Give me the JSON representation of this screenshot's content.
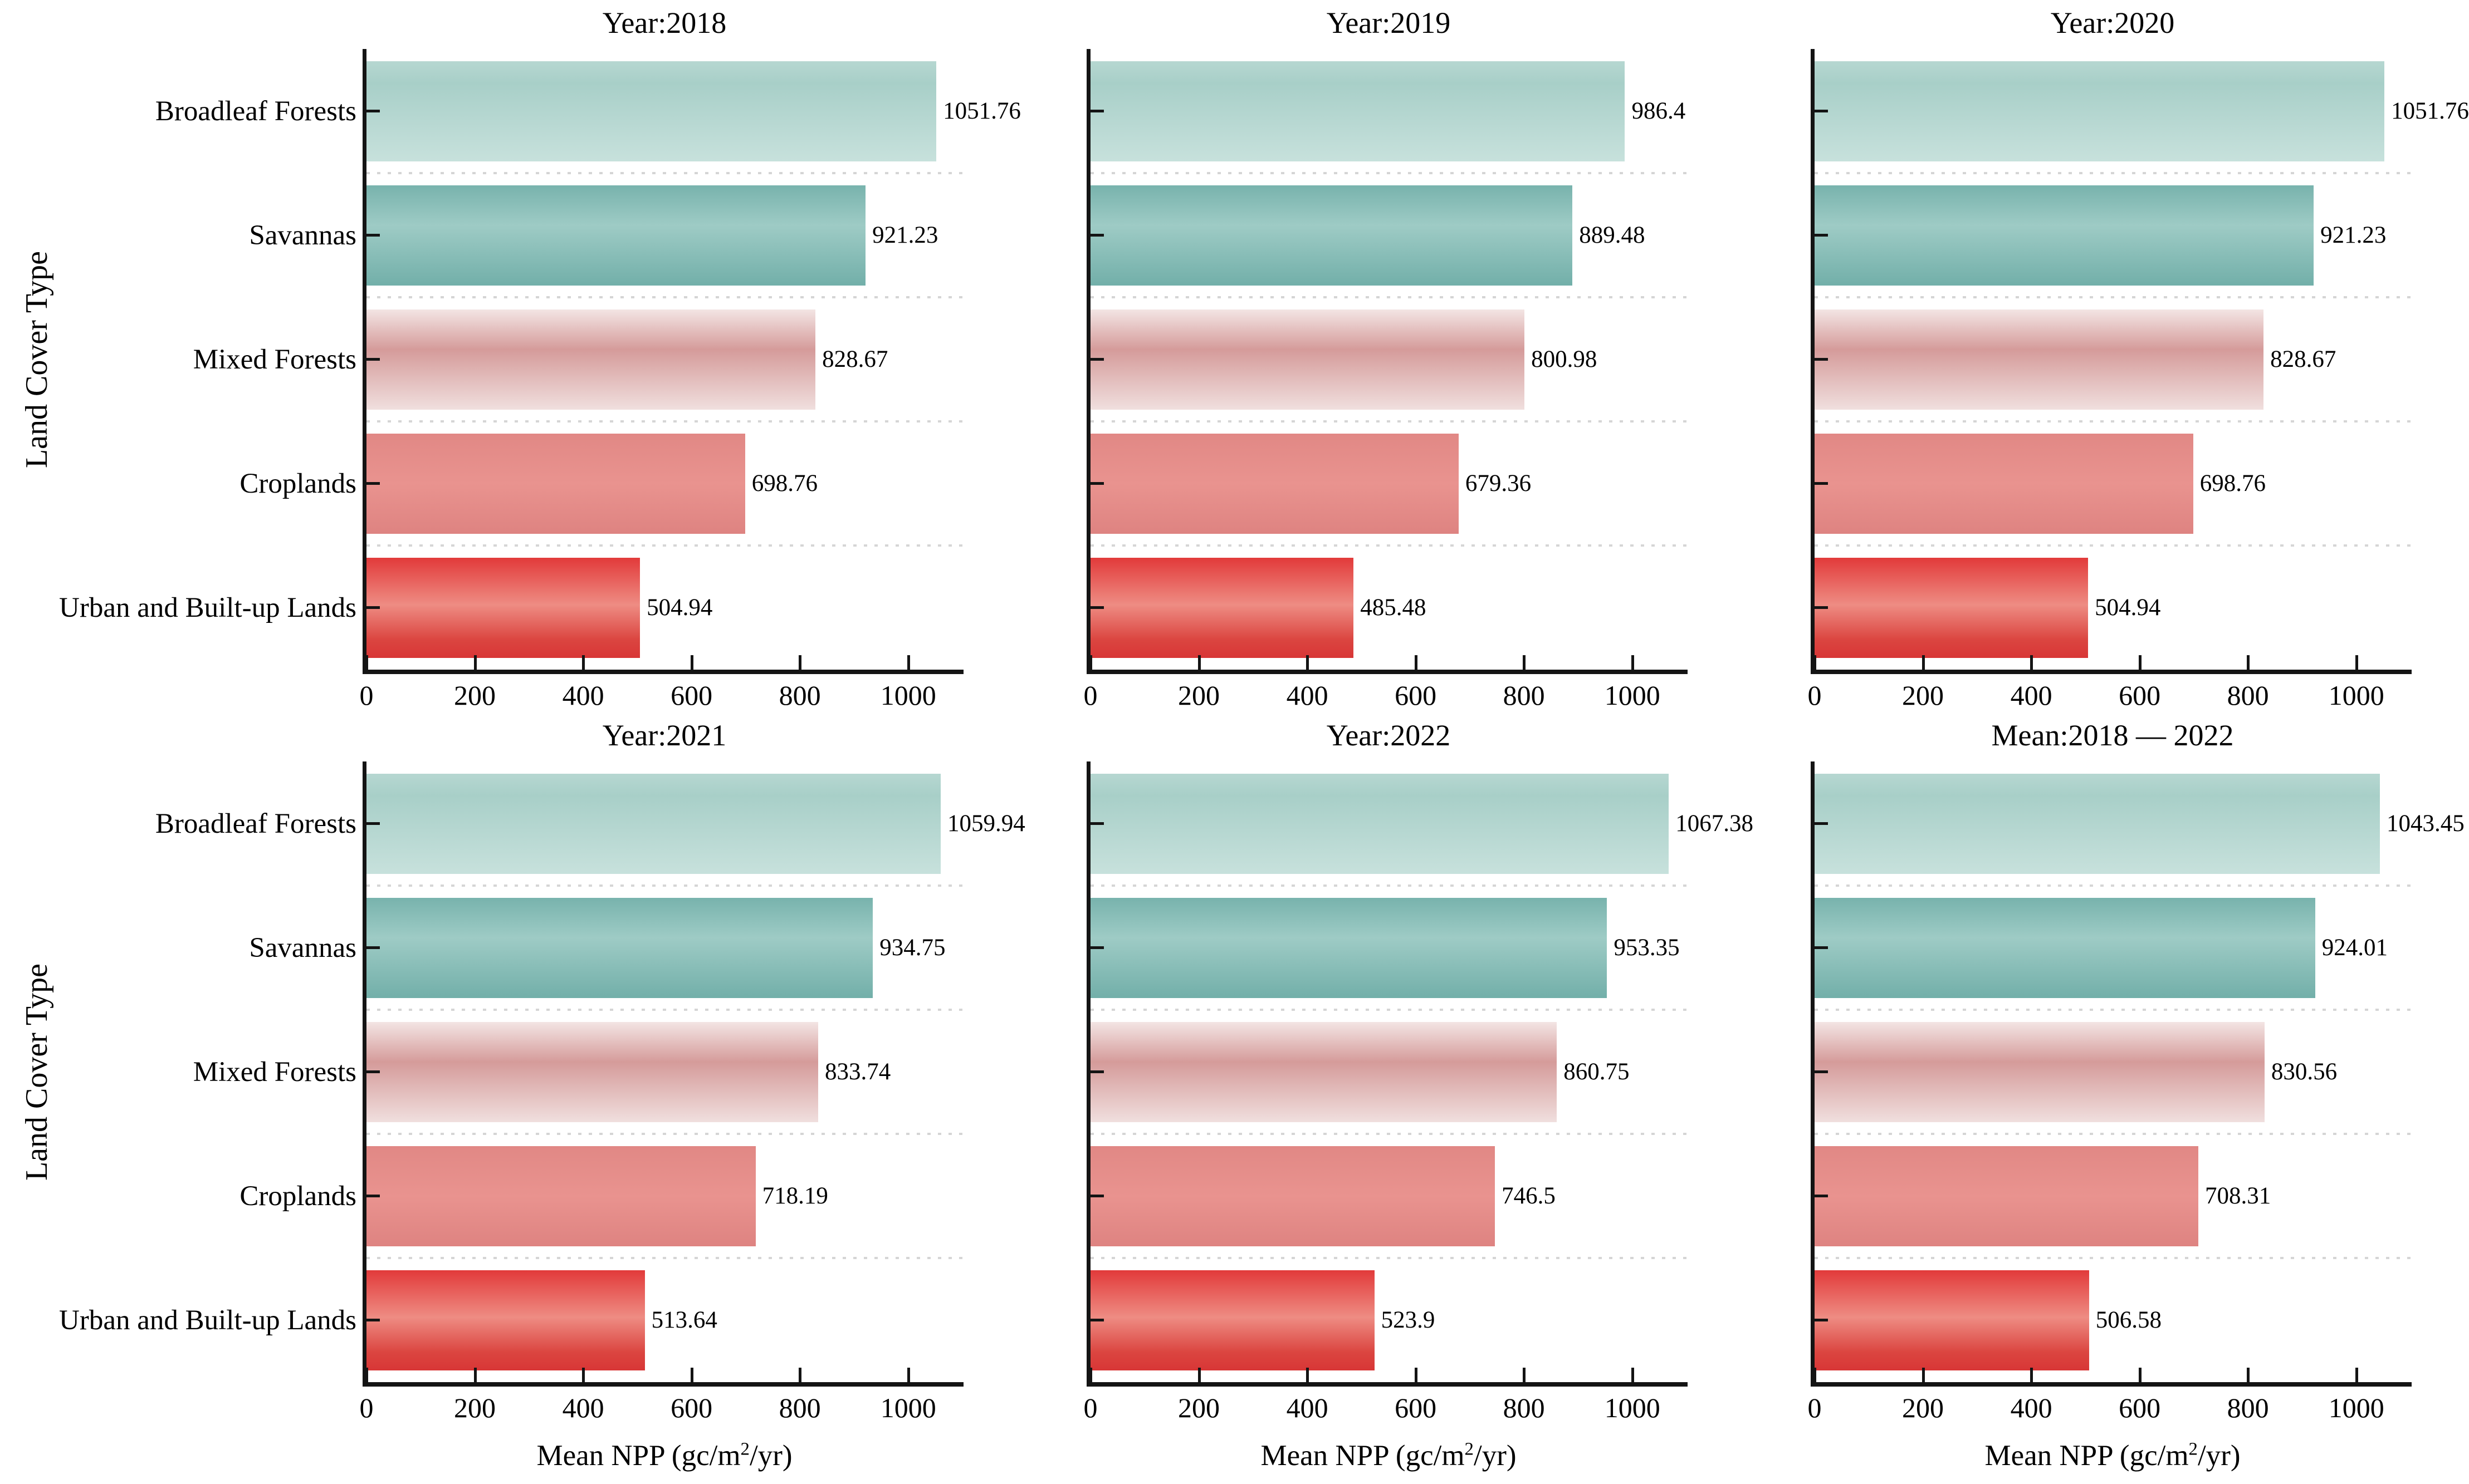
{
  "figure": {
    "ylabel": "Land Cover Type",
    "xlabel": {
      "prefix": "Mean NPP (gc/m",
      "sup": "2",
      "suffix": "/yr)"
    },
    "categories": [
      "Broadleaf Forests",
      "Savannas",
      "Mixed Forests",
      "Croplands",
      "Urban and Built-up Lands"
    ],
    "xticks": [
      0,
      200,
      400,
      600,
      800,
      1000
    ],
    "axis_color": "#141414",
    "gridline_color": "#d5d5d5",
    "bar_gradients": [
      [
        "#b6d7d1 0%",
        "#a8cfc8 22%",
        "#c7e1dc 100%"
      ],
      [
        "#78b3ad 0%",
        "#9ecbc5 40%",
        "#72afa9 100%"
      ],
      [
        "#f3e5e4 0%",
        "#d59b9a 40%",
        "#f0dfde 100%"
      ],
      [
        "#e18885 0%",
        "#e9938f 50%",
        "#de8381 100%"
      ],
      [
        "#e23a3a 0%",
        "#ee8c83 47%",
        "#db4540 82%",
        "#d83636 100%"
      ]
    ]
  },
  "chart_data": [
    {
      "type": "bar",
      "orientation": "horizontal",
      "title": "Year:2018",
      "categories": [
        "Broadleaf Forests",
        "Savannas",
        "Mixed Forests",
        "Croplands",
        "Urban and Built-up Lands"
      ],
      "values": [
        1051.76,
        921.23,
        828.67,
        698.76,
        504.94
      ],
      "xlim": [
        0,
        1100
      ],
      "grid": "dotted-between-bands",
      "legend": "none"
    },
    {
      "type": "bar",
      "orientation": "horizontal",
      "title": "Year:2019",
      "categories": [
        "Broadleaf Forests",
        "Savannas",
        "Mixed Forests",
        "Croplands",
        "Urban and Built-up Lands"
      ],
      "values": [
        986.4,
        889.48,
        800.98,
        679.36,
        485.48
      ],
      "xlim": [
        0,
        1100
      ],
      "grid": "dotted-between-bands",
      "legend": "none"
    },
    {
      "type": "bar",
      "orientation": "horizontal",
      "title": "Year:2020",
      "categories": [
        "Broadleaf Forests",
        "Savannas",
        "Mixed Forests",
        "Croplands",
        "Urban and Built-up Lands"
      ],
      "values": [
        1051.76,
        921.23,
        828.67,
        698.76,
        504.94
      ],
      "xlim": [
        0,
        1100
      ],
      "grid": "dotted-between-bands",
      "legend": "none"
    },
    {
      "type": "bar",
      "orientation": "horizontal",
      "title": "Year:2021",
      "categories": [
        "Broadleaf Forests",
        "Savannas",
        "Mixed Forests",
        "Croplands",
        "Urban and Built-up Lands"
      ],
      "values": [
        1059.94,
        934.75,
        833.74,
        718.19,
        513.64
      ],
      "xlim": [
        0,
        1100
      ],
      "grid": "dotted-between-bands",
      "legend": "none"
    },
    {
      "type": "bar",
      "orientation": "horizontal",
      "title": "Year:2022",
      "categories": [
        "Broadleaf Forests",
        "Savannas",
        "Mixed Forests",
        "Croplands",
        "Urban and Built-up Lands"
      ],
      "values": [
        1067.38,
        953.35,
        860.75,
        746.5,
        523.9
      ],
      "xlim": [
        0,
        1100
      ],
      "grid": "dotted-between-bands",
      "legend": "none"
    },
    {
      "type": "bar",
      "orientation": "horizontal",
      "title": "Mean:2018 — 2022",
      "categories": [
        "Broadleaf Forests",
        "Savannas",
        "Mixed Forests",
        "Croplands",
        "Urban and Built-up Lands"
      ],
      "values": [
        1043.45,
        924.01,
        830.56,
        708.31,
        506.58
      ],
      "xlim": [
        0,
        1100
      ],
      "grid": "dotted-between-bands",
      "legend": "none"
    }
  ]
}
